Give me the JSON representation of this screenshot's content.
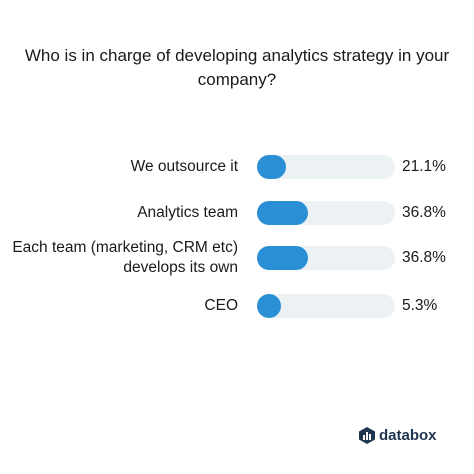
{
  "chart_data": {
    "type": "bar",
    "orientation": "horizontal",
    "title": "Who is in charge of developing analytics strategy in your company?",
    "categories": [
      "We outsource it",
      "Analytics team",
      "Each team (marketing, CRM etc) develops its own",
      "CEO"
    ],
    "category_lines": [
      [
        "We outsource it"
      ],
      [
        "Analytics team"
      ],
      [
        "Each team (marketing, CRM etc)",
        "develops its own"
      ],
      [
        "CEO"
      ]
    ],
    "values": [
      21.1,
      36.8,
      36.8,
      5.3
    ],
    "value_labels": [
      "21.1%",
      "36.8%",
      "36.8%",
      "5.3%"
    ],
    "xlim": [
      0,
      100
    ],
    "grid": false,
    "bar_color": "#2a8fd4",
    "track_color": "#ecf1f4"
  },
  "brand": {
    "name": "databox",
    "color": "#1f3550",
    "icon": "databox-logo-icon"
  }
}
